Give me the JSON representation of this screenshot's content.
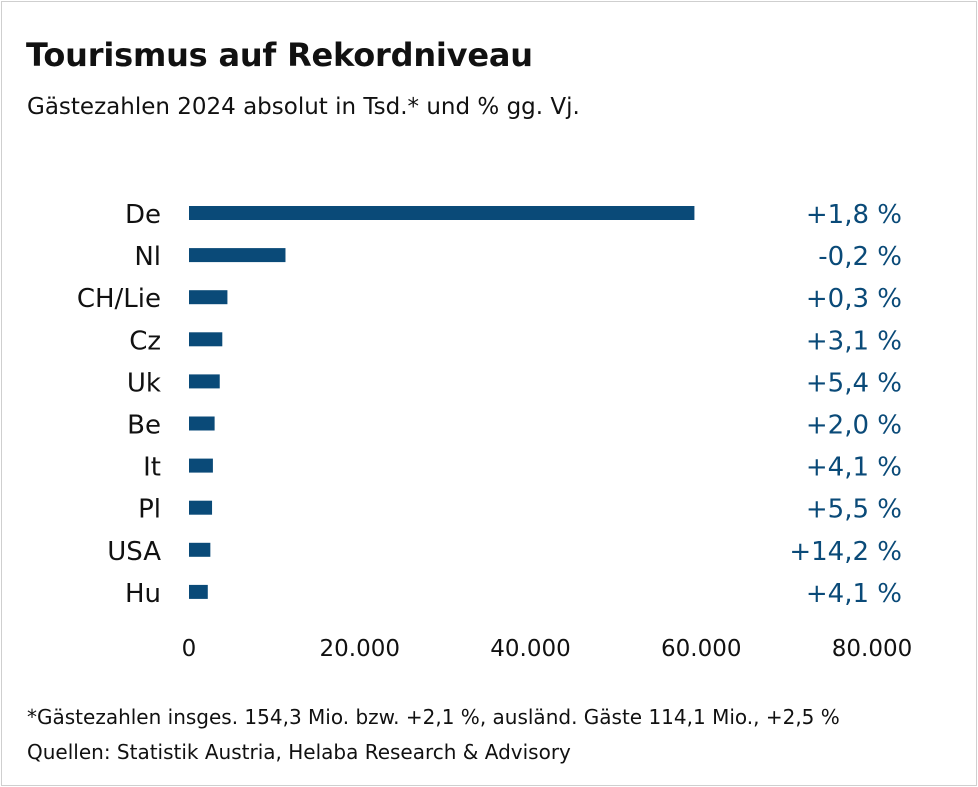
{
  "chart_data": {
    "type": "bar",
    "orientation": "horizontal",
    "title": "Tourismus auf Rekordniveau",
    "subtitle": "Gästezahlen 2024 absolut in Tsd.* und % gg. Vj.",
    "categories": [
      "De",
      "Nl",
      "CH/Lie",
      "Cz",
      "Uk",
      "Be",
      "It",
      "Pl",
      "USA",
      "Hu"
    ],
    "values": [
      59200,
      11300,
      4500,
      3900,
      3600,
      3000,
      2800,
      2700,
      2500,
      2200
    ],
    "change_labels": [
      "+1,8 %",
      "-0,2 %",
      "+0,3 %",
      "+3,1 %",
      "+5,4 %",
      "+2,0 %",
      "+4,1 %",
      "+5,5 %",
      "+14,2 %",
      "+4,1 %"
    ],
    "xlim": [
      0,
      80000
    ],
    "xticks": [
      0,
      20000,
      40000,
      60000,
      80000
    ],
    "xtick_labels": [
      "0",
      "20.000",
      "40.000",
      "60.000",
      "80.000"
    ],
    "grid": false,
    "legend": "none"
  },
  "footnotes": {
    "note": "*Gästezahlen insges. 154,3 Mio. bzw. +2,1 %, ausländ. Gäste 114,1 Mio., +2,5 %",
    "source": "Quellen: Statistik Austria, Helaba Research & Advisory"
  },
  "colors": {
    "bar": "#0a4a78",
    "change_text": "#0a4a78",
    "text": "#111111"
  }
}
